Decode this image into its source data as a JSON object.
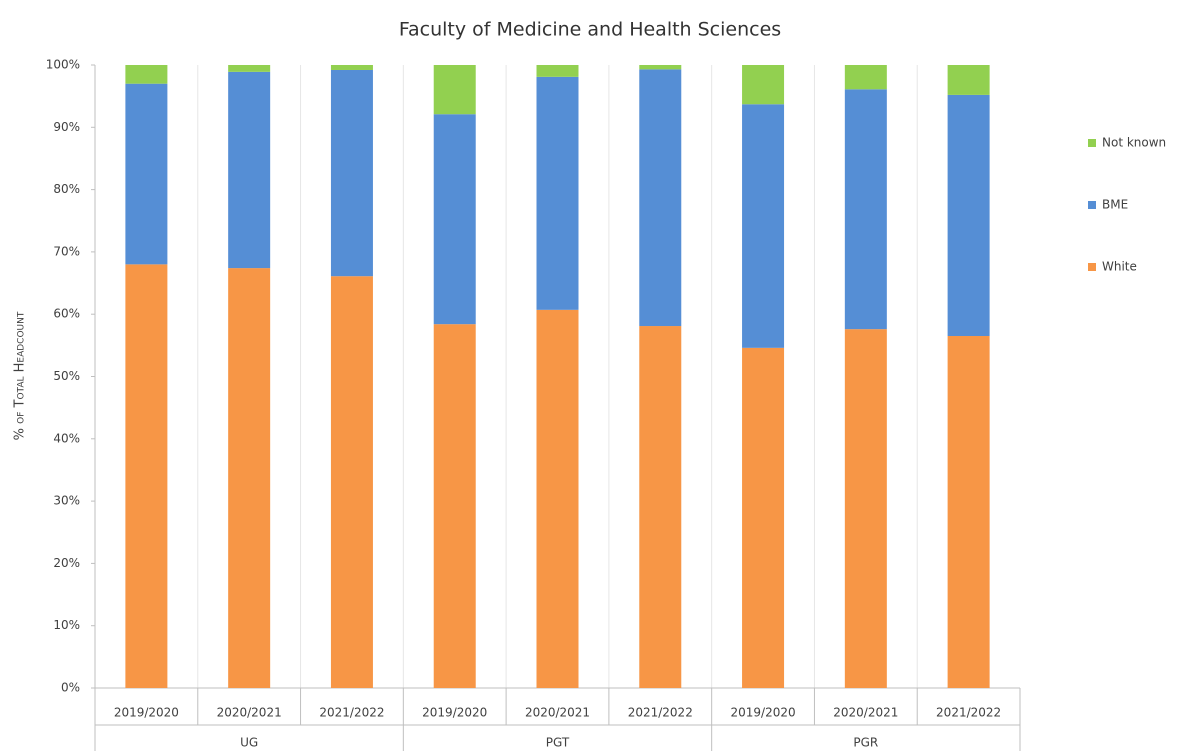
{
  "chart_data": {
    "type": "stacked_bar",
    "title": "Faculty of Medicine and Health Sciences",
    "y_label": "% of Total Headcount",
    "groups": [
      {
        "label": "UG",
        "categories": [
          "2019/2020",
          "2020/2021",
          "2021/2022"
        ]
      },
      {
        "label": "PGT",
        "categories": [
          "2019/2020",
          "2020/2021",
          "2021/2022"
        ]
      },
      {
        "label": "PGR",
        "categories": [
          "2019/2020",
          "2020/2021",
          "2021/2022"
        ]
      }
    ],
    "series": [
      {
        "name": "White",
        "color": "#f79646",
        "values": [
          68,
          67.4,
          66.1,
          58.4,
          60.7,
          58.1,
          54.6,
          57.6,
          56.5
        ]
      },
      {
        "name": "BME",
        "color": "#558ed5",
        "values": [
          29,
          31.5,
          33.1,
          33.7,
          37.4,
          41.2,
          39.1,
          38.5,
          38.7
        ]
      },
      {
        "name": "Not known",
        "color": "#92d050",
        "values": [
          3,
          1.1,
          0.8,
          7.9,
          1.9,
          0.7,
          6.3,
          3.9,
          4.8
        ]
      }
    ],
    "ylim": [
      0,
      100
    ],
    "yticks": [
      {
        "value": 0,
        "label": "0%"
      },
      {
        "value": 10,
        "label": "10%"
      },
      {
        "value": 20,
        "label": "20%"
      },
      {
        "value": 30,
        "label": "30%"
      },
      {
        "value": 40,
        "label": "40%"
      },
      {
        "value": 50,
        "label": "50%"
      },
      {
        "value": 60,
        "label": "60%"
      },
      {
        "value": 70,
        "label": "70%"
      },
      {
        "value": 80,
        "label": "80%"
      },
      {
        "value": 90,
        "label": "90%"
      },
      {
        "value": 100,
        "label": "100%"
      }
    ],
    "legend": "right"
  }
}
